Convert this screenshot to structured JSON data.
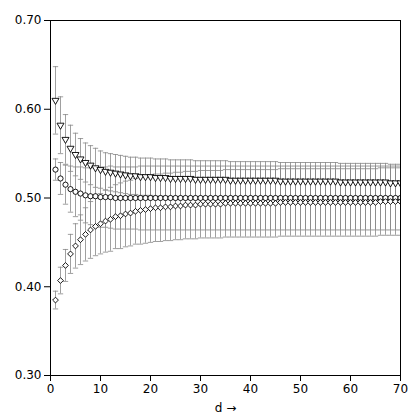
{
  "chart_data": {
    "type": "scatter",
    "xlabel": "d",
    "x": [
      1,
      2,
      3,
      4,
      5,
      6,
      7,
      8,
      9,
      10,
      11,
      12,
      13,
      14,
      15,
      16,
      17,
      18,
      19,
      20,
      21,
      22,
      23,
      24,
      25,
      26,
      27,
      28,
      29,
      30,
      31,
      32,
      33,
      34,
      35,
      36,
      37,
      38,
      39,
      40,
      41,
      42,
      43,
      44,
      45,
      46,
      47,
      48,
      49,
      50,
      51,
      52,
      53,
      54,
      55,
      56,
      57,
      58,
      59,
      60,
      61,
      62,
      63,
      64,
      65,
      66,
      67,
      68,
      69,
      70
    ],
    "xlim": [
      0,
      70
    ],
    "xticks": [
      0,
      10,
      20,
      30,
      40,
      50,
      60,
      70
    ],
    "ylim": [
      0.3,
      0.7
    ],
    "yticks": [
      0.3,
      0.4,
      0.5,
      0.6,
      0.7
    ],
    "grid": false,
    "series": [
      {
        "marker": "triangle_down",
        "color": "#000000",
        "values": [
          0.61,
          0.582,
          0.566,
          0.556,
          0.549,
          0.544,
          0.54,
          0.537,
          0.534,
          0.532,
          0.53,
          0.529,
          0.528,
          0.527,
          0.526,
          0.525,
          0.525,
          0.524,
          0.524,
          0.524,
          0.523,
          0.523,
          0.523,
          0.522,
          0.522,
          0.522,
          0.522,
          0.522,
          0.521,
          0.521,
          0.521,
          0.521,
          0.521,
          0.521,
          0.521,
          0.52,
          0.52,
          0.52,
          0.52,
          0.52,
          0.52,
          0.52,
          0.52,
          0.52,
          0.52,
          0.519,
          0.519,
          0.519,
          0.519,
          0.519,
          0.519,
          0.519,
          0.519,
          0.519,
          0.519,
          0.519,
          0.519,
          0.518,
          0.518,
          0.518,
          0.518,
          0.518,
          0.518,
          0.518,
          0.518,
          0.518,
          0.518,
          0.517,
          0.517,
          0.517
        ],
        "errors": [
          0.038,
          0.032,
          0.028,
          0.026,
          0.024,
          0.023,
          0.022,
          0.022,
          0.022,
          0.021,
          0.021,
          0.021,
          0.021,
          0.021,
          0.021,
          0.021,
          0.021,
          0.021,
          0.021,
          0.021,
          0.021,
          0.021,
          0.021,
          0.021,
          0.021,
          0.021,
          0.021,
          0.021,
          0.021,
          0.021,
          0.021,
          0.021,
          0.021,
          0.021,
          0.021,
          0.021,
          0.021,
          0.021,
          0.021,
          0.021,
          0.021,
          0.021,
          0.021,
          0.021,
          0.021,
          0.021,
          0.021,
          0.021,
          0.021,
          0.021,
          0.021,
          0.021,
          0.021,
          0.021,
          0.021,
          0.021,
          0.021,
          0.021,
          0.021,
          0.021,
          0.021,
          0.021,
          0.021,
          0.021,
          0.021,
          0.021,
          0.021,
          0.021,
          0.021,
          0.021
        ]
      },
      {
        "marker": "circle",
        "color": "#000000",
        "values": [
          0.532,
          0.522,
          0.515,
          0.51,
          0.507,
          0.505,
          0.503,
          0.502,
          0.502,
          0.501,
          0.501,
          0.501,
          0.5,
          0.5,
          0.5,
          0.5,
          0.5,
          0.5,
          0.5,
          0.5,
          0.5,
          0.5,
          0.5,
          0.5,
          0.5,
          0.5,
          0.5,
          0.5,
          0.5,
          0.5,
          0.5,
          0.5,
          0.5,
          0.5,
          0.5,
          0.5,
          0.5,
          0.5,
          0.5,
          0.5,
          0.5,
          0.5,
          0.5,
          0.5,
          0.5,
          0.5,
          0.5,
          0.5,
          0.5,
          0.5,
          0.5,
          0.5,
          0.5,
          0.5,
          0.5,
          0.5,
          0.5,
          0.5,
          0.5,
          0.5,
          0.5,
          0.5,
          0.5,
          0.5,
          0.5,
          0.5,
          0.5,
          0.5,
          0.5,
          0.5
        ],
        "errors": [
          0.012,
          0.018,
          0.022,
          0.026,
          0.028,
          0.03,
          0.031,
          0.032,
          0.033,
          0.034,
          0.034,
          0.035,
          0.035,
          0.035,
          0.035,
          0.035,
          0.035,
          0.036,
          0.036,
          0.036,
          0.036,
          0.036,
          0.036,
          0.036,
          0.036,
          0.036,
          0.036,
          0.036,
          0.036,
          0.036,
          0.036,
          0.036,
          0.036,
          0.036,
          0.036,
          0.036,
          0.036,
          0.036,
          0.036,
          0.036,
          0.036,
          0.036,
          0.036,
          0.036,
          0.036,
          0.036,
          0.036,
          0.036,
          0.036,
          0.036,
          0.036,
          0.036,
          0.036,
          0.036,
          0.036,
          0.036,
          0.036,
          0.036,
          0.036,
          0.036,
          0.036,
          0.036,
          0.036,
          0.036,
          0.036,
          0.036,
          0.036,
          0.036,
          0.036,
          0.036
        ]
      },
      {
        "marker": "diamond",
        "color": "#000000",
        "values": [
          0.385,
          0.407,
          0.424,
          0.437,
          0.446,
          0.453,
          0.459,
          0.464,
          0.468,
          0.471,
          0.474,
          0.476,
          0.479,
          0.48,
          0.482,
          0.483,
          0.485,
          0.486,
          0.487,
          0.488,
          0.489,
          0.489,
          0.49,
          0.49,
          0.491,
          0.491,
          0.492,
          0.492,
          0.492,
          0.493,
          0.493,
          0.493,
          0.493,
          0.493,
          0.494,
          0.494,
          0.494,
          0.494,
          0.494,
          0.494,
          0.494,
          0.494,
          0.494,
          0.494,
          0.494,
          0.495,
          0.495,
          0.495,
          0.495,
          0.495,
          0.495,
          0.495,
          0.495,
          0.495,
          0.495,
          0.495,
          0.495,
          0.495,
          0.495,
          0.495,
          0.495,
          0.495,
          0.495,
          0.495,
          0.495,
          0.496,
          0.496,
          0.496,
          0.496,
          0.496
        ],
        "errors": [
          0.01,
          0.015,
          0.018,
          0.022,
          0.025,
          0.028,
          0.03,
          0.032,
          0.033,
          0.034,
          0.035,
          0.036,
          0.036,
          0.037,
          0.037,
          0.037,
          0.037,
          0.038,
          0.038,
          0.038,
          0.038,
          0.038,
          0.038,
          0.038,
          0.038,
          0.038,
          0.038,
          0.038,
          0.038,
          0.038,
          0.038,
          0.038,
          0.038,
          0.038,
          0.038,
          0.038,
          0.038,
          0.038,
          0.038,
          0.038,
          0.038,
          0.038,
          0.038,
          0.038,
          0.038,
          0.038,
          0.038,
          0.038,
          0.038,
          0.038,
          0.038,
          0.038,
          0.038,
          0.038,
          0.038,
          0.038,
          0.038,
          0.038,
          0.038,
          0.038,
          0.038,
          0.038,
          0.038,
          0.038,
          0.038,
          0.038,
          0.038,
          0.038,
          0.038,
          0.038
        ]
      }
    ]
  }
}
